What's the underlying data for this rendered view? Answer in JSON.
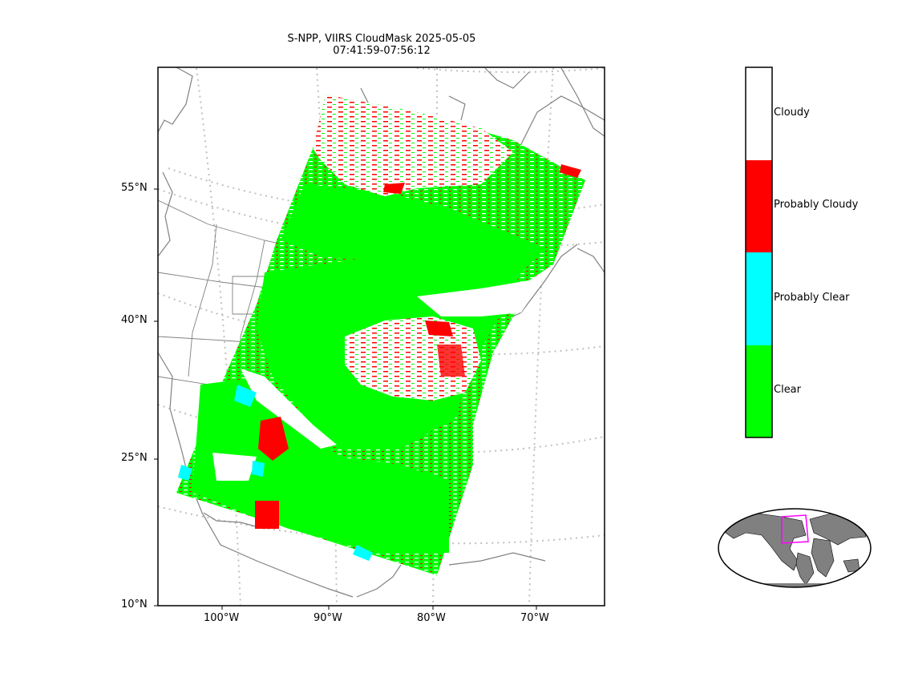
{
  "title": {
    "line1": "S-NPP, VIIRS CloudMask 2025-05-05",
    "line2": "07:41:59-07:56:12"
  },
  "lat_ticks": [
    "55°N",
    "40°N",
    "25°N",
    "10°N"
  ],
  "lon_ticks": [
    "100°W",
    "90°W",
    "80°W",
    "70°W"
  ],
  "legend": {
    "categories": [
      {
        "label": "Cloudy",
        "color": "#ffffff"
      },
      {
        "label": "Probably Cloudy",
        "color": "#ff0000"
      },
      {
        "label": "Probably Clear",
        "color": "#00ffff"
      },
      {
        "label": "Clear",
        "color": "#00ff00"
      }
    ]
  },
  "colors": {
    "coastline": "#808080",
    "graticule": "#c0c0c0",
    "inset_land": "#808080",
    "inset_box": "#ff00ff"
  }
}
